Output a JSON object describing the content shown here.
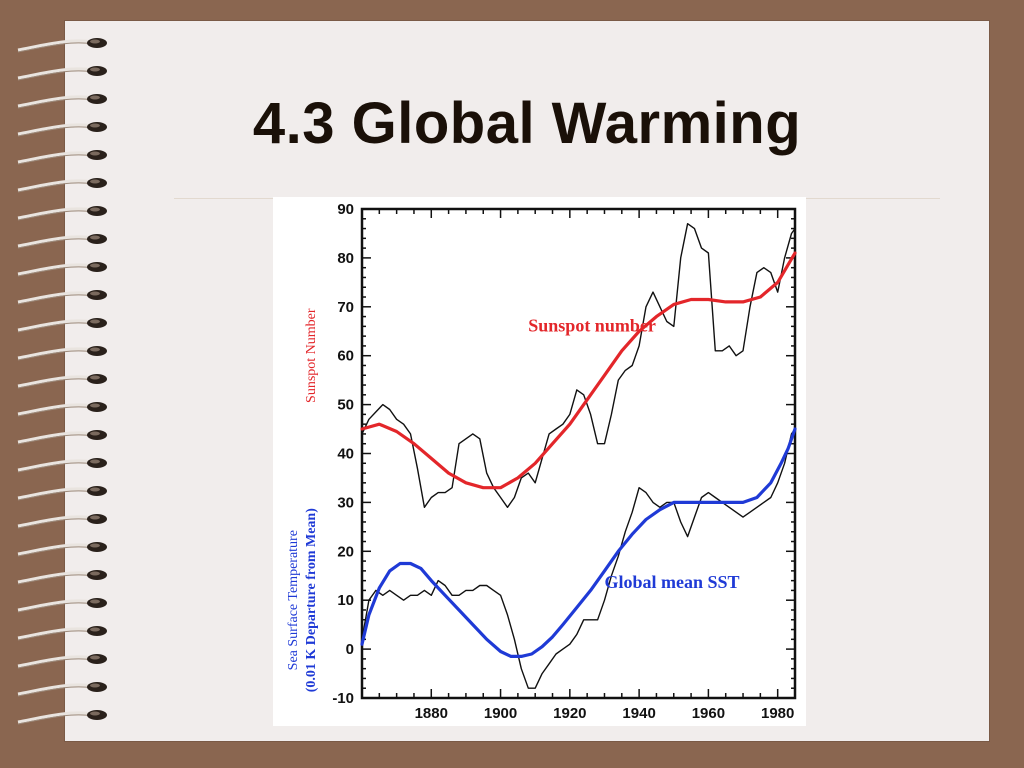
{
  "slide": {
    "title": "4.3 Global Warming"
  },
  "colors": {
    "background": "#8a6650",
    "slide": "#f1edec",
    "sunspot": "#e3262a",
    "sst": "#1f3ad6",
    "raw": "#111111"
  },
  "icons": [
    "spiral-binding-icon"
  ],
  "chart_data": {
    "type": "line",
    "xlabel": "",
    "ylabel_sunspot": "Sunspot Number",
    "ylabel_sst": "Sea Surface Temperature (0.01 K Departure from Mean)",
    "xlim": [
      1860,
      1985
    ],
    "ylim": [
      -10,
      90
    ],
    "x_ticks": [
      1880,
      1900,
      1920,
      1940,
      1960,
      1980
    ],
    "y_ticks": [
      -10,
      0,
      10,
      20,
      30,
      40,
      50,
      60,
      70,
      80,
      90
    ],
    "annotations": [
      {
        "text": "Sunspot number",
        "series": "sunspot_smooth",
        "x": 1908,
        "y": 65
      },
      {
        "text": "Global mean SST",
        "series": "sst_smooth",
        "x": 1930,
        "y": 12.5
      }
    ],
    "series": [
      {
        "key": "sunspot_raw",
        "style": "raw",
        "x": [
          1860,
          1862,
          1864,
          1866,
          1868,
          1870,
          1872,
          1874,
          1876,
          1878,
          1880,
          1882,
          1884,
          1886,
          1888,
          1890,
          1892,
          1894,
          1896,
          1898,
          1900,
          1902,
          1904,
          1906,
          1908,
          1910,
          1912,
          1914,
          1916,
          1918,
          1920,
          1922,
          1924,
          1926,
          1928,
          1930,
          1932,
          1934,
          1936,
          1938,
          1940,
          1942,
          1944,
          1946,
          1948,
          1950,
          1952,
          1954,
          1956,
          1958,
          1960,
          1962,
          1964,
          1966,
          1968,
          1970,
          1972,
          1974,
          1976,
          1978,
          1980,
          1982,
          1984,
          1985
        ],
        "y": [
          44,
          47,
          48.5,
          50,
          49,
          47,
          46,
          44,
          37,
          29,
          31,
          32,
          32,
          33,
          42,
          43,
          44,
          43,
          36,
          33,
          31,
          29,
          31,
          35,
          36,
          34,
          39,
          44,
          45,
          46,
          48,
          53,
          52,
          48,
          42,
          42,
          48,
          55,
          57,
          58,
          62,
          70,
          73,
          70,
          67,
          66,
          80,
          87,
          86,
          82,
          81,
          61,
          61,
          62,
          60,
          61,
          70,
          77,
          78,
          77,
          73,
          80,
          85,
          86
        ]
      },
      {
        "key": "sunspot_smooth",
        "style": "sunspot",
        "x": [
          1860,
          1865,
          1870,
          1875,
          1880,
          1885,
          1890,
          1895,
          1900,
          1905,
          1910,
          1915,
          1920,
          1925,
          1930,
          1935,
          1940,
          1945,
          1950,
          1955,
          1960,
          1965,
          1970,
          1975,
          1980,
          1985
        ],
        "y": [
          45,
          46,
          44.5,
          42,
          39,
          36,
          34,
          33,
          33,
          35,
          38,
          42,
          46,
          51,
          56,
          61,
          65,
          68,
          70.5,
          71.5,
          71.5,
          71,
          71,
          72,
          75,
          81
        ]
      },
      {
        "key": "sst_raw",
        "style": "raw",
        "x": [
          1860,
          1862,
          1864,
          1866,
          1868,
          1870,
          1872,
          1874,
          1876,
          1878,
          1880,
          1882,
          1884,
          1886,
          1888,
          1890,
          1892,
          1894,
          1896,
          1898,
          1900,
          1902,
          1904,
          1906,
          1908,
          1910,
          1912,
          1914,
          1916,
          1918,
          1920,
          1922,
          1924,
          1926,
          1928,
          1930,
          1932,
          1934,
          1936,
          1938,
          1940,
          1942,
          1944,
          1946,
          1948,
          1950,
          1952,
          1954,
          1956,
          1958,
          1960,
          1962,
          1964,
          1966,
          1968,
          1970,
          1972,
          1974,
          1976,
          1978,
          1980,
          1982,
          1984,
          1985
        ],
        "y": [
          2,
          10,
          12,
          11,
          12,
          11,
          10,
          11,
          11,
          12,
          11,
          14,
          13,
          11,
          11,
          12,
          12,
          13,
          13,
          12,
          11,
          7,
          2,
          -4,
          -8,
          -8,
          -5,
          -3,
          -1,
          0,
          1,
          3,
          6,
          6,
          6,
          10,
          15,
          19,
          24,
          28,
          33,
          32,
          30,
          29,
          30,
          30,
          26,
          23,
          27,
          31,
          32,
          31,
          30,
          29,
          28,
          27,
          28,
          29,
          30,
          31,
          34,
          38,
          44,
          45
        ]
      },
      {
        "key": "sst_smooth",
        "style": "sst",
        "x": [
          1860,
          1862,
          1865,
          1868,
          1871,
          1874,
          1877,
          1880,
          1884,
          1888,
          1892,
          1896,
          1900,
          1903,
          1906,
          1909,
          1912,
          1915,
          1918,
          1922,
          1926,
          1930,
          1934,
          1938,
          1942,
          1946,
          1950,
          1955,
          1960,
          1965,
          1970,
          1974,
          1978,
          1981,
          1983,
          1985
        ],
        "y": [
          1,
          7,
          12.5,
          16,
          17.5,
          17.5,
          16.5,
          14,
          11,
          8,
          5,
          2,
          -0.5,
          -1.5,
          -1.5,
          -1,
          0.5,
          2.5,
          5,
          8.5,
          12,
          16,
          20,
          23.5,
          26.5,
          28.5,
          30,
          30,
          30,
          30,
          30,
          31,
          34,
          38,
          41,
          45
        ]
      }
    ]
  }
}
